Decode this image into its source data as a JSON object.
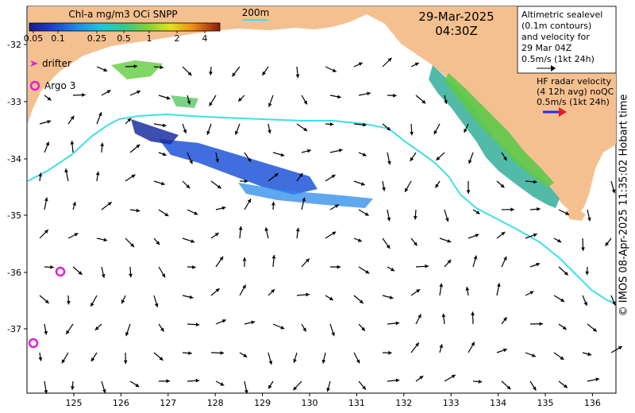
{
  "colorbar": {
    "title": "Chl-a mg/m3 OCi SNPP",
    "ticks": [
      "0.05",
      "0.1",
      "0.25",
      "0.5",
      "1",
      "2",
      "4"
    ]
  },
  "date": "29-Mar-2025",
  "time": "04:30Z",
  "isobath_label": "200m",
  "legend": {
    "drifter": "drifter",
    "argo": "Argo 3"
  },
  "altimetry_text": [
    "Altimetric sealevel",
    "(0.1m contours)",
    "and velocity for",
    "29 Mar 04Z",
    "0.5m/s (1kt 24h)"
  ],
  "hf_radar_text": [
    "HF radar velocity",
    "(4 12h avg) noQC",
    "0.5m/s (1kt 24h)"
  ],
  "credit": "© IMOS 08-Apr-2025 11:35:02 Hobart time",
  "lat_labels": [
    "-32",
    "-33",
    "-34",
    "-35",
    "-36",
    "-37"
  ],
  "lon_labels": [
    "125",
    "126",
    "127",
    "128",
    "129",
    "130",
    "131",
    "132",
    "133",
    "134",
    "135",
    "136"
  ],
  "colors": {
    "land": "#f5c08f",
    "isobath": "#3ee0e6",
    "argo": "#e01ed8",
    "drifter": "#e01ed8",
    "hf_arrow": "#1f2ef0",
    "hf_arrow_red": "#e02020"
  }
}
